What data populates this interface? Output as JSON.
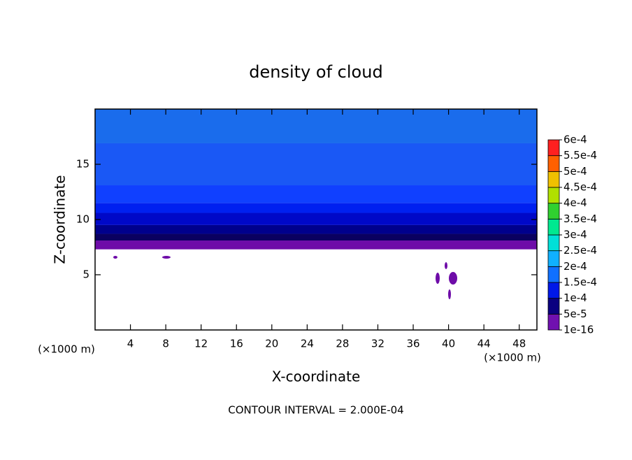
{
  "chart_data": {
    "type": "contour",
    "title": "density of cloud",
    "xlabel": "X-coordinate",
    "ylabel": "Z-coordinate",
    "x_unit": "(×1000 m)",
    "y_unit": "(×1000 m)",
    "footnote": "CONTOUR INTERVAL = 2.000E-04",
    "xlim": [
      0,
      50
    ],
    "ylim": [
      0,
      20
    ],
    "xticks": [
      4,
      8,
      12,
      16,
      20,
      24,
      28,
      32,
      36,
      40,
      44,
      48
    ],
    "yticks": [
      5,
      10,
      15
    ],
    "field": {
      "z_edges": [
        7.3,
        8.1,
        8.7,
        9.5,
        10.6,
        11.5,
        13.1,
        16.9,
        20
      ],
      "values": [
        3e-05,
        6e-05,
        8e-05,
        0.0001,
        0.00011,
        0.00012,
        0.000135,
        0.00015
      ],
      "colors": [
        "#6e0ca8",
        "#0a0060",
        "#00008c",
        "#0008c8",
        "#0020f0",
        "#1040ff",
        "#1a58f5",
        "#1a6cec"
      ]
    },
    "colorbar": {
      "levels": [
        {
          "value": 1e-16,
          "label": "1e-16"
        },
        {
          "value": 5e-05,
          "label": "5e-5"
        },
        {
          "value": 0.0001,
          "label": "1e-4"
        },
        {
          "value": 0.00015,
          "label": "1.5e-4"
        },
        {
          "value": 0.0002,
          "label": "2e-4"
        },
        {
          "value": 0.00025,
          "label": "2.5e-4"
        },
        {
          "value": 0.0003,
          "label": "3e-4"
        },
        {
          "value": 0.00035,
          "label": "3.5e-4"
        },
        {
          "value": 0.0004,
          "label": "4e-4"
        },
        {
          "value": 0.00045,
          "label": "4.5e-4"
        },
        {
          "value": 0.0005,
          "label": "5e-4"
        },
        {
          "value": 0.00055,
          "label": "5.5e-4"
        },
        {
          "value": 0.0006,
          "label": "6e-4"
        }
      ],
      "colors": [
        "#7010b0",
        "#0a0080",
        "#0018e8",
        "#1070ff",
        "#10b0ff",
        "#00e0d8",
        "#00e890",
        "#30d030",
        "#b0e000",
        "#f0c000",
        "#ff6000",
        "#ff2020"
      ]
    }
  }
}
